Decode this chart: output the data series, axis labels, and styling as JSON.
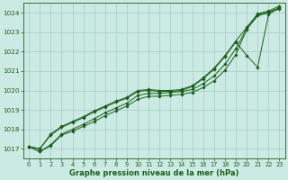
{
  "background_color": "#cceae4",
  "grid_color": "#aacfc8",
  "line_color": "#1a5e1a",
  "xlabel": "Graphe pression niveau de la mer (hPa)",
  "xlim": [
    -0.5,
    23.5
  ],
  "ylim": [
    1016.5,
    1024.5
  ],
  "yticks": [
    1017,
    1018,
    1019,
    1020,
    1021,
    1022,
    1023,
    1024
  ],
  "xticks": [
    0,
    1,
    2,
    3,
    4,
    5,
    6,
    7,
    8,
    9,
    10,
    11,
    12,
    13,
    14,
    15,
    16,
    17,
    18,
    19,
    20,
    21,
    22,
    23
  ],
  "series": [
    [
      1017.1,
      1016.85,
      1017.15,
      1017.7,
      1017.9,
      1018.15,
      1018.4,
      1018.7,
      1018.95,
      1019.2,
      1019.55,
      1019.7,
      1019.7,
      1019.75,
      1019.8,
      1019.9,
      1020.15,
      1020.5,
      1021.05,
      1021.85,
      1023.15,
      1023.85,
      1024.0,
      1024.2
    ],
    [
      1017.1,
      1016.85,
      1017.2,
      1017.75,
      1018.0,
      1018.25,
      1018.55,
      1018.85,
      1019.1,
      1019.35,
      1019.75,
      1019.85,
      1019.85,
      1019.9,
      1019.95,
      1020.05,
      1020.35,
      1020.75,
      1021.35,
      1022.15,
      1023.2,
      1023.9,
      1024.05,
      1024.25
    ],
    [
      1017.1,
      1017.0,
      1017.7,
      1018.1,
      1018.35,
      1018.6,
      1018.9,
      1019.15,
      1019.4,
      1019.6,
      1019.95,
      1020.0,
      1019.95,
      1019.95,
      1020.0,
      1020.2,
      1020.6,
      1021.1,
      1021.75,
      1022.5,
      1021.8,
      1021.2,
      1023.9,
      1024.3
    ],
    [
      1017.1,
      1017.0,
      1017.75,
      1018.15,
      1018.4,
      1018.65,
      1018.95,
      1019.2,
      1019.45,
      1019.65,
      1020.0,
      1020.05,
      1020.0,
      1020.0,
      1020.05,
      1020.25,
      1020.65,
      1021.15,
      1021.8,
      1022.55,
      1023.25,
      1023.95,
      1024.1,
      1024.35
    ]
  ]
}
